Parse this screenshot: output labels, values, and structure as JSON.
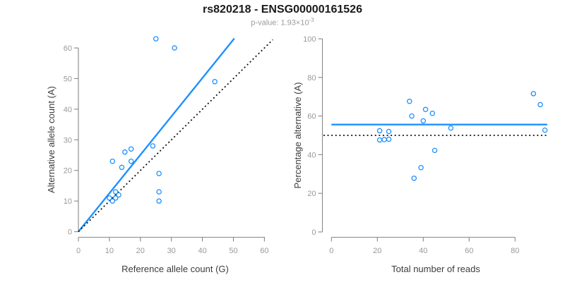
{
  "title": "rs820218 - ENSG00000161526",
  "subtitle": {
    "text": "p-value: 1.93×10",
    "exponent": "-3"
  },
  "colors": {
    "accent_blue": "#1E90FF",
    "dotted_black": "#111111",
    "axis_gray": "#878787",
    "tick_label_gray": "#999999",
    "axis_label_dark": "#3c3c3c",
    "subtitle_gray": "#9b9b9b"
  },
  "chart_data": [
    {
      "type": "scatter",
      "name": "allele-counts",
      "xlabel": "Reference allele count (G)",
      "ylabel": "Alternative allele count (A)",
      "xlim": [
        0,
        62.7
      ],
      "ylim": [
        0,
        63.2
      ],
      "xticks": [
        0,
        10,
        20,
        30,
        40,
        50,
        60
      ],
      "yticks": [
        0,
        10,
        20,
        30,
        40,
        50,
        60
      ],
      "grid": false,
      "points": [
        [
          25,
          63
        ],
        [
          31,
          60
        ],
        [
          44,
          49
        ],
        [
          24,
          28
        ],
        [
          17,
          27
        ],
        [
          15,
          26
        ],
        [
          11,
          23
        ],
        [
          17,
          23
        ],
        [
          14,
          21
        ],
        [
          26,
          19
        ],
        [
          26,
          13
        ],
        [
          26,
          10
        ],
        [
          12,
          13
        ],
        [
          13,
          12
        ],
        [
          12,
          11
        ],
        [
          10,
          11
        ],
        [
          11,
          10
        ]
      ],
      "lines": [
        {
          "name": "regression-line",
          "style": "solid",
          "color": "#1E90FF",
          "x1": 0,
          "y1": 0,
          "x2": 50.3,
          "y2": 63.1
        },
        {
          "name": "identity-line",
          "style": "dotted",
          "color": "#111111",
          "x1": 0,
          "y1": 0,
          "x2": 62.7,
          "y2": 62.7
        }
      ]
    },
    {
      "type": "scatter",
      "name": "percentage-vs-reads",
      "xlabel": "Total number of reads",
      "ylabel": "Percentage alternative (A)",
      "xlim": [
        0,
        94.7
      ],
      "ylim": [
        0,
        100
      ],
      "xticks": [
        0,
        20,
        40,
        60,
        80
      ],
      "yticks": [
        0,
        20,
        40,
        60,
        80,
        100
      ],
      "grid": false,
      "points": [
        [
          88,
          71.6
        ],
        [
          91,
          65.9
        ],
        [
          93,
          52.7
        ],
        [
          52,
          53.8
        ],
        [
          44,
          61.4
        ],
        [
          41,
          63.4
        ],
        [
          40,
          57.5
        ],
        [
          35,
          60.0
        ],
        [
          34,
          67.6
        ],
        [
          45,
          42.2
        ],
        [
          39,
          33.3
        ],
        [
          36,
          27.8
        ],
        [
          25,
          52.0
        ],
        [
          21,
          52.4
        ],
        [
          25,
          48.0
        ],
        [
          23,
          47.8
        ],
        [
          21,
          47.6
        ]
      ],
      "lines": [
        {
          "name": "mean-percentage-line",
          "style": "solid",
          "color": "#1E90FF",
          "x1": 0,
          "y1": 55.6,
          "x2": 94,
          "y2": 55.6
        },
        {
          "name": "expected-50-line",
          "style": "dotted",
          "color": "#111111",
          "x1": -3.5,
          "y1": 50,
          "x2": 94,
          "y2": 50
        }
      ]
    }
  ]
}
